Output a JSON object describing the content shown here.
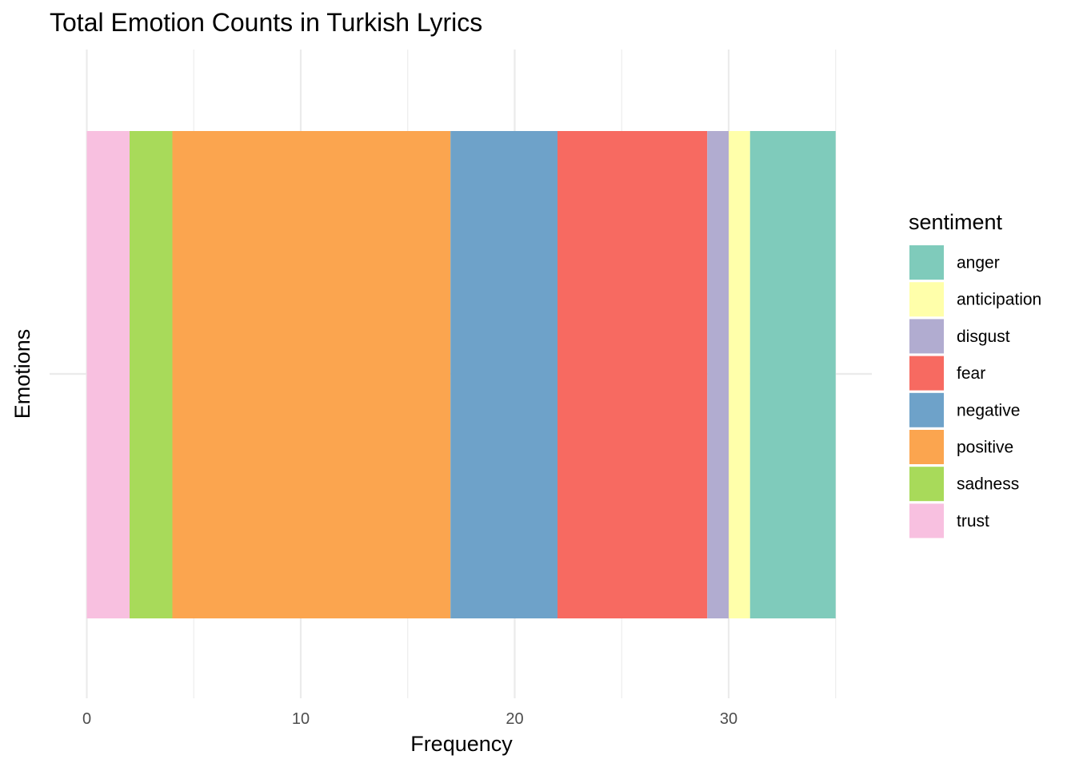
{
  "chart_data": {
    "type": "bar",
    "orientation": "horizontal",
    "stacked": true,
    "title": "Total Emotion Counts in Turkish Lyrics",
    "xlabel": "Frequency",
    "ylabel": "Emotions",
    "xlim": [
      0,
      35
    ],
    "x_ticks": [
      0,
      10,
      20,
      30
    ],
    "categories": [
      ""
    ],
    "legend_title": "sentiment",
    "legend_position": "right",
    "grid": true,
    "series": [
      {
        "name": "anger",
        "values": [
          4
        ],
        "color": "#7FCBBB"
      },
      {
        "name": "anticipation",
        "values": [
          1
        ],
        "color": "#FFFFAA"
      },
      {
        "name": "disgust",
        "values": [
          1
        ],
        "color": "#B1ACD0"
      },
      {
        "name": "fear",
        "values": [
          7
        ],
        "color": "#F76A61"
      },
      {
        "name": "negative",
        "values": [
          5
        ],
        "color": "#6EA2C9"
      },
      {
        "name": "positive",
        "values": [
          13
        ],
        "color": "#FBA54F"
      },
      {
        "name": "sadness",
        "values": [
          2
        ],
        "color": "#A8DA5A"
      },
      {
        "name": "trust",
        "values": [
          2
        ],
        "color": "#F8C0E0"
      }
    ]
  }
}
